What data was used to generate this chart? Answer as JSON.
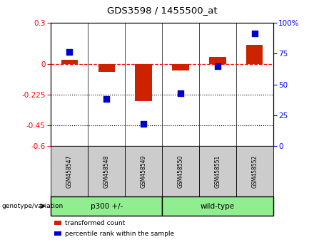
{
  "title": "GDS3598 / 1455500_at",
  "samples": [
    "GSM458547",
    "GSM458548",
    "GSM458549",
    "GSM458550",
    "GSM458551",
    "GSM458552"
  ],
  "red_values": [
    0.03,
    -0.06,
    -0.27,
    -0.05,
    0.05,
    0.14
  ],
  "blue_values": [
    76,
    38,
    18,
    43,
    65,
    91
  ],
  "ylim_left": [
    -0.6,
    0.3
  ],
  "ylim_right": [
    0,
    100
  ],
  "yticks_left": [
    0.3,
    0,
    -0.225,
    -0.45,
    -0.6
  ],
  "yticks_right": [
    100,
    75,
    50,
    25,
    0
  ],
  "hline_y": 0,
  "dotted_lines": [
    -0.225,
    -0.45
  ],
  "groups": [
    {
      "label": "p300 +/-",
      "start": 0,
      "end": 3,
      "color": "#90EE90"
    },
    {
      "label": "wild-type",
      "start": 3,
      "end": 6,
      "color": "#90EE90"
    }
  ],
  "group_label": "genotype/variation",
  "legend_red": "transformed count",
  "legend_blue": "percentile rank within the sample",
  "red_color": "#CC2200",
  "blue_color": "#0000CC",
  "bar_width": 0.45,
  "blue_marker_size": 6
}
